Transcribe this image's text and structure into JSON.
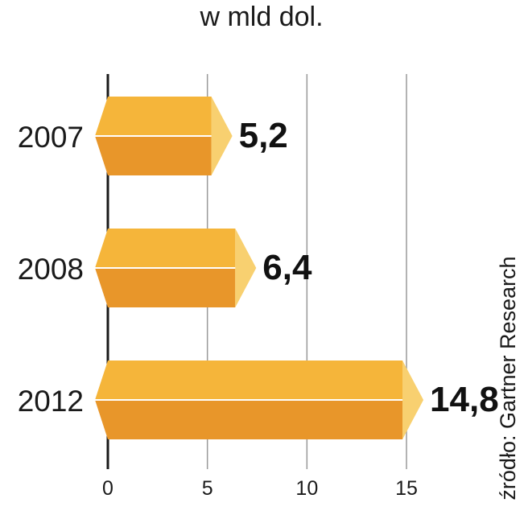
{
  "chart_data": {
    "type": "bar",
    "orientation": "horizontal",
    "title": "w mld dol.",
    "categories": [
      "2007",
      "2008",
      "2012"
    ],
    "values": [
      5.2,
      6.4,
      14.8
    ],
    "value_labels": [
      "5,2",
      "6,4",
      "14,8"
    ],
    "xlim": [
      0,
      15
    ],
    "x_ticks": [
      "0",
      "5",
      "10",
      "15"
    ],
    "grid": true,
    "source": "źródło: Gartner Research",
    "colors": {
      "bar_top": "#f5b53a",
      "bar_bottom": "#e8962a",
      "bar_cap": "#f8d070",
      "grid": "#9a9a9a",
      "axis": "#1a1a1a"
    }
  }
}
